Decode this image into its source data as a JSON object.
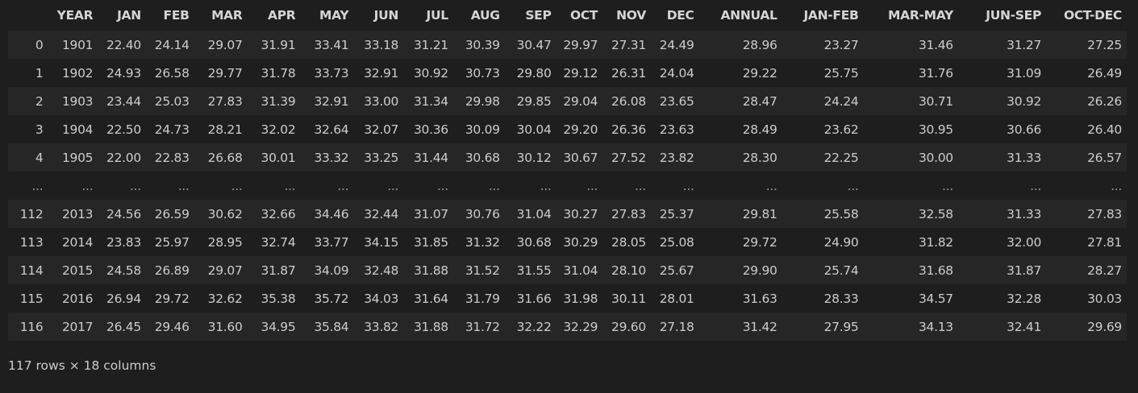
{
  "table": {
    "index_header": "",
    "columns": [
      "YEAR",
      "JAN",
      "FEB",
      "MAR",
      "APR",
      "MAY",
      "JUN",
      "JUL",
      "AUG",
      "SEP",
      "OCT",
      "NOV",
      "DEC",
      "ANNUAL",
      "JAN-FEB",
      "MAR-MAY",
      "JUN-SEP",
      "OCT-DEC"
    ],
    "rows": [
      {
        "index": "0",
        "cells": [
          "1901",
          "22.40",
          "24.14",
          "29.07",
          "31.91",
          "33.41",
          "33.18",
          "31.21",
          "30.39",
          "30.47",
          "29.97",
          "27.31",
          "24.49",
          "28.96",
          "23.27",
          "31.46",
          "31.27",
          "27.25"
        ]
      },
      {
        "index": "1",
        "cells": [
          "1902",
          "24.93",
          "26.58",
          "29.77",
          "31.78",
          "33.73",
          "32.91",
          "30.92",
          "30.73",
          "29.80",
          "29.12",
          "26.31",
          "24.04",
          "29.22",
          "25.75",
          "31.76",
          "31.09",
          "26.49"
        ]
      },
      {
        "index": "2",
        "cells": [
          "1903",
          "23.44",
          "25.03",
          "27.83",
          "31.39",
          "32.91",
          "33.00",
          "31.34",
          "29.98",
          "29.85",
          "29.04",
          "26.08",
          "23.65",
          "28.47",
          "24.24",
          "30.71",
          "30.92",
          "26.26"
        ]
      },
      {
        "index": "3",
        "cells": [
          "1904",
          "22.50",
          "24.73",
          "28.21",
          "32.02",
          "32.64",
          "32.07",
          "30.36",
          "30.09",
          "30.04",
          "29.20",
          "26.36",
          "23.63",
          "28.49",
          "23.62",
          "30.95",
          "30.66",
          "26.40"
        ]
      },
      {
        "index": "4",
        "cells": [
          "1905",
          "22.00",
          "22.83",
          "26.68",
          "30.01",
          "33.32",
          "33.25",
          "31.44",
          "30.68",
          "30.12",
          "30.67",
          "27.52",
          "23.82",
          "28.30",
          "22.25",
          "30.00",
          "31.33",
          "26.57"
        ]
      },
      {
        "index": "...",
        "cells": [
          "...",
          "...",
          "...",
          "...",
          "...",
          "...",
          "...",
          "...",
          "...",
          "...",
          "...",
          "...",
          "...",
          "...",
          "...",
          "...",
          "...",
          "..."
        ]
      },
      {
        "index": "112",
        "cells": [
          "2013",
          "24.56",
          "26.59",
          "30.62",
          "32.66",
          "34.46",
          "32.44",
          "31.07",
          "30.76",
          "31.04",
          "30.27",
          "27.83",
          "25.37",
          "29.81",
          "25.58",
          "32.58",
          "31.33",
          "27.83"
        ]
      },
      {
        "index": "113",
        "cells": [
          "2014",
          "23.83",
          "25.97",
          "28.95",
          "32.74",
          "33.77",
          "34.15",
          "31.85",
          "31.32",
          "30.68",
          "30.29",
          "28.05",
          "25.08",
          "29.72",
          "24.90",
          "31.82",
          "32.00",
          "27.81"
        ]
      },
      {
        "index": "114",
        "cells": [
          "2015",
          "24.58",
          "26.89",
          "29.07",
          "31.87",
          "34.09",
          "32.48",
          "31.88",
          "31.52",
          "31.55",
          "31.04",
          "28.10",
          "25.67",
          "29.90",
          "25.74",
          "31.68",
          "31.87",
          "28.27"
        ]
      },
      {
        "index": "115",
        "cells": [
          "2016",
          "26.94",
          "29.72",
          "32.62",
          "35.38",
          "35.72",
          "34.03",
          "31.64",
          "31.79",
          "31.66",
          "31.98",
          "30.11",
          "28.01",
          "31.63",
          "28.33",
          "34.57",
          "32.28",
          "30.03"
        ]
      },
      {
        "index": "116",
        "cells": [
          "2017",
          "26.45",
          "29.46",
          "31.60",
          "34.95",
          "35.84",
          "33.82",
          "31.88",
          "31.72",
          "32.22",
          "32.29",
          "29.60",
          "27.18",
          "31.42",
          "27.95",
          "34.13",
          "32.41",
          "29.69"
        ]
      }
    ]
  },
  "footer": {
    "shape_text": "117 rows × 18 columns"
  },
  "colors": {
    "background": "#1e1e1e",
    "row_stripe": "#262626",
    "text": "#cccccc"
  }
}
